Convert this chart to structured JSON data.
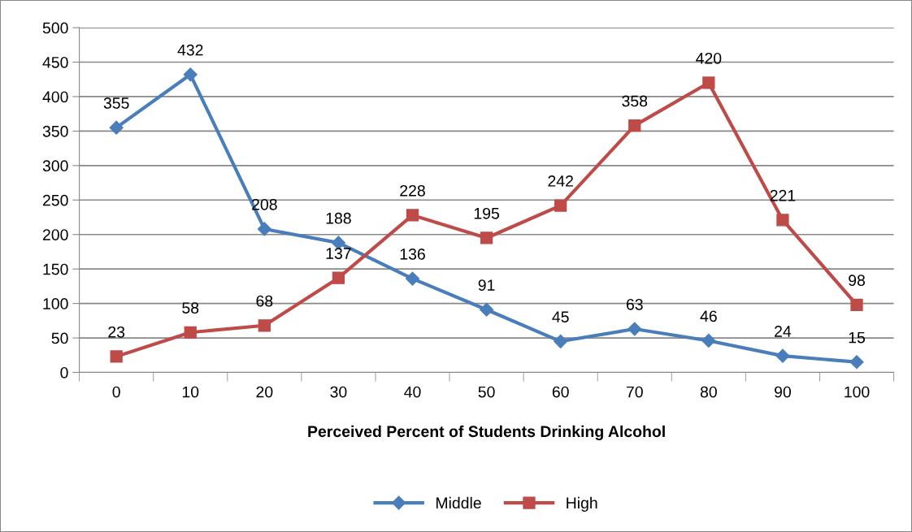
{
  "chart_data": {
    "type": "line",
    "xlabel": "Perceived Percent of Students Drinking Alcohol",
    "categories": [
      "0",
      "10",
      "20",
      "30",
      "40",
      "50",
      "60",
      "70",
      "80",
      "90",
      "100"
    ],
    "series": [
      {
        "name": "Middle",
        "color": "#4a7ebb",
        "marker": "diamond",
        "values": [
          355,
          432,
          208,
          188,
          136,
          91,
          45,
          63,
          46,
          24,
          15
        ]
      },
      {
        "name": "High",
        "color": "#be4b48",
        "marker": "square",
        "values": [
          23,
          58,
          68,
          137,
          228,
          195,
          242,
          358,
          420,
          221,
          98
        ]
      }
    ],
    "ylim": [
      0,
      500
    ],
    "yticks": [
      0,
      50,
      100,
      150,
      200,
      250,
      300,
      350,
      400,
      450,
      500
    ],
    "grid": "y",
    "legend": "bottom",
    "data_labels": true
  }
}
